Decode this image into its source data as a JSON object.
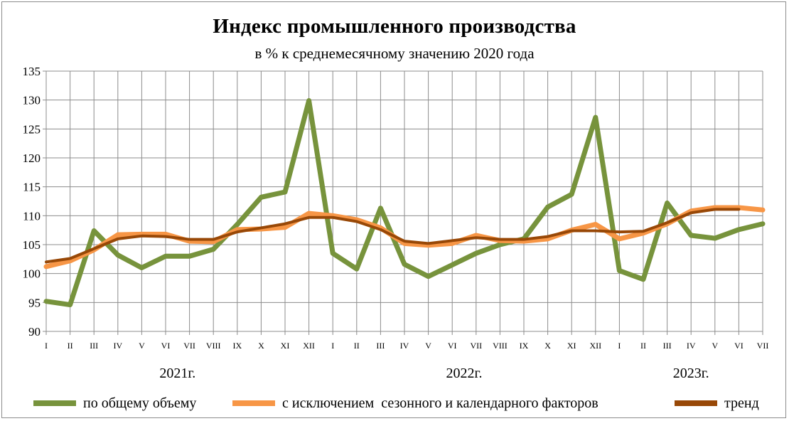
{
  "chart_data": {
    "type": "line",
    "title": "Индекс промышленного производства",
    "subtitle": "в % к среднемесячному значению 2020 года",
    "xlabel": "",
    "ylabel": "",
    "ylim": [
      90,
      135
    ],
    "yticks": [
      90,
      95,
      100,
      105,
      110,
      115,
      120,
      125,
      130,
      135
    ],
    "grid": true,
    "legend_position": "bottom",
    "categories": [
      "I",
      "II",
      "III",
      "IV",
      "V",
      "VI",
      "VII",
      "VIII",
      "IX",
      "X",
      "XI",
      "XII",
      "I",
      "II",
      "III",
      "IV",
      "V",
      "VI",
      "VII",
      "VIII",
      "IX",
      "X",
      "XI",
      "XII",
      "I",
      "II",
      "III",
      "IV",
      "V",
      "VI",
      "VII"
    ],
    "year_labels": [
      {
        "label": "2021г.",
        "start_index": 0,
        "end_index": 11
      },
      {
        "label": "2022г.",
        "start_index": 12,
        "end_index": 23
      },
      {
        "label": "2023г.",
        "start_index": 24,
        "end_index": 30
      }
    ],
    "series": [
      {
        "name": "по общему объему",
        "color": "#77933c",
        "values": [
          95.2,
          94.6,
          107.4,
          103.2,
          101.0,
          103.0,
          103.0,
          104.2,
          108.5,
          113.2,
          114.1,
          129.9,
          103.5,
          100.8,
          111.3,
          101.6,
          99.5,
          101.5,
          103.5,
          105.0,
          106.0,
          111.5,
          113.7,
          127.0,
          100.5,
          99.0,
          112.2,
          106.6,
          106.1,
          107.6,
          108.6
        ]
      },
      {
        "name": "с исключением  сезонного и календарного факторов",
        "color": "#f79646",
        "values": [
          101.2,
          102.2,
          104.1,
          106.7,
          106.8,
          106.8,
          105.6,
          105.5,
          107.6,
          107.7,
          108.0,
          110.4,
          110.0,
          109.3,
          107.9,
          105.2,
          104.9,
          105.2,
          106.6,
          105.7,
          105.6,
          106.0,
          107.5,
          108.5,
          106.0,
          107.0,
          108.6,
          110.8,
          111.4,
          111.4,
          111.0
        ]
      },
      {
        "name": "тренд",
        "color": "#984807",
        "values": [
          102.0,
          102.6,
          104.3,
          106.0,
          106.5,
          106.4,
          105.9,
          105.9,
          107.2,
          107.9,
          108.6,
          109.7,
          109.7,
          109.0,
          107.6,
          105.6,
          105.2,
          105.7,
          106.2,
          105.9,
          105.9,
          106.4,
          107.4,
          107.4,
          107.2,
          107.3,
          108.8,
          110.5,
          111.1,
          111.1,
          null
        ]
      }
    ]
  }
}
